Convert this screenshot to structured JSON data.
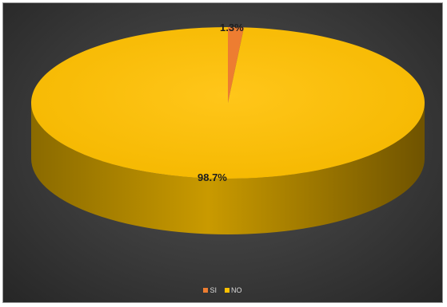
{
  "chart_data": {
    "type": "pie",
    "style": "3d",
    "categories": [
      "SI",
      "NO"
    ],
    "values": [
      1.3,
      98.7
    ],
    "value_labels": [
      "1.3%",
      "98.7%"
    ],
    "colors": [
      "#ED7D31",
      "#FFC000"
    ],
    "legend": "bottom",
    "title": ""
  }
}
